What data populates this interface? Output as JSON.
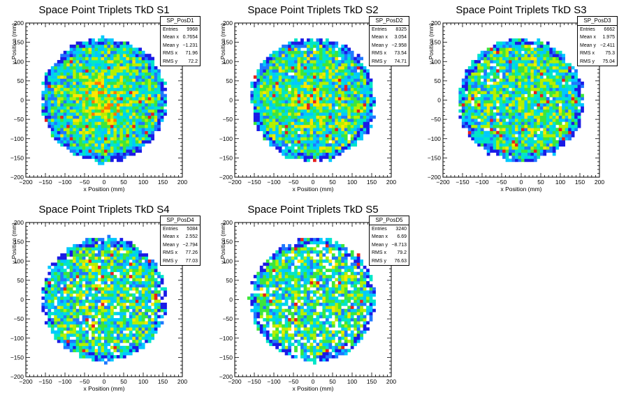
{
  "chart_data": [
    {
      "type": "heatmap",
      "title": "Space Point Triplets TkD S1",
      "xlabel": "x Position (mm)",
      "ylabel": "y Position (mm)",
      "xlim": [
        -200,
        200
      ],
      "ylim": [
        -200,
        200
      ],
      "xticks": [
        "−200",
        "−150",
        "−100",
        "−50",
        "0",
        "50",
        "100",
        "150",
        "200"
      ],
      "yticks": [
        "−200",
        "−150",
        "−100",
        "−50",
        "0",
        "50",
        "100",
        "150",
        "200"
      ],
      "disk_radius_mm": 160,
      "stats": {
        "name": "SP_PosD1",
        "rows": [
          {
            "label": "Entries",
            "value": "9968"
          },
          {
            "label": "Mean x",
            "value": "0.7654"
          },
          {
            "label": "Mean y",
            "value": "−1.231"
          },
          {
            "label": "RMS x",
            "value": "71.96"
          },
          {
            "label": "RMS y",
            "value": "72.2"
          }
        ]
      }
    },
    {
      "type": "heatmap",
      "title": "Space Point Triplets TkD S2",
      "xlabel": "x Position (mm)",
      "ylabel": "y Position (mm)",
      "xlim": [
        -200,
        200
      ],
      "ylim": [
        -200,
        200
      ],
      "xticks": [
        "−200",
        "−150",
        "−100",
        "−50",
        "0",
        "50",
        "100",
        "150",
        "200"
      ],
      "yticks": [
        "−200",
        "−150",
        "−100",
        "−50",
        "0",
        "50",
        "100",
        "150",
        "200"
      ],
      "disk_radius_mm": 160,
      "stats": {
        "name": "SP_PosD2",
        "rows": [
          {
            "label": "Entries",
            "value": "8325"
          },
          {
            "label": "Mean x",
            "value": "3.054"
          },
          {
            "label": "Mean y",
            "value": "−2.958"
          },
          {
            "label": "RMS x",
            "value": "73.54"
          },
          {
            "label": "RMS y",
            "value": "74.71"
          }
        ]
      }
    },
    {
      "type": "heatmap",
      "title": "Space Point Triplets TkD S3",
      "xlabel": "x Position (mm)",
      "ylabel": "y Position (mm)",
      "xlim": [
        -200,
        200
      ],
      "ylim": [
        -200,
        200
      ],
      "xticks": [
        "−200",
        "−150",
        "−100",
        "−50",
        "0",
        "50",
        "100",
        "150",
        "200"
      ],
      "yticks": [
        "−200",
        "−150",
        "−100",
        "−50",
        "0",
        "50",
        "100",
        "150",
        "200"
      ],
      "disk_radius_mm": 160,
      "stats": {
        "name": "SP_PosD3",
        "rows": [
          {
            "label": "Entries",
            "value": "6662"
          },
          {
            "label": "Mean x",
            "value": "1.975"
          },
          {
            "label": "Mean y",
            "value": "−2.411"
          },
          {
            "label": "RMS x",
            "value": "75.3"
          },
          {
            "label": "RMS y",
            "value": "75.04"
          }
        ]
      }
    },
    {
      "type": "heatmap",
      "title": "Space Point Triplets TkD S4",
      "xlabel": "x Position (mm)",
      "ylabel": "y Position (mm)",
      "xlim": [
        -200,
        200
      ],
      "ylim": [
        -200,
        200
      ],
      "xticks": [
        "−200",
        "−150",
        "−100",
        "−50",
        "0",
        "50",
        "100",
        "150",
        "200"
      ],
      "yticks": [
        "−200",
        "−150",
        "−100",
        "−50",
        "0",
        "50",
        "100",
        "150",
        "200"
      ],
      "disk_radius_mm": 160,
      "stats": {
        "name": "SP_PosD4",
        "rows": [
          {
            "label": "Entries",
            "value": "5084"
          },
          {
            "label": "Mean x",
            "value": "2.552"
          },
          {
            "label": "Mean y",
            "value": "−2.794"
          },
          {
            "label": "RMS x",
            "value": "77.26"
          },
          {
            "label": "RMS y",
            "value": "77.03"
          }
        ]
      }
    },
    {
      "type": "heatmap",
      "title": "Space Point Triplets TkD S5",
      "xlabel": "x Position (mm)",
      "ylabel": "y Position (mm)",
      "xlim": [
        -200,
        200
      ],
      "ylim": [
        -200,
        200
      ],
      "xticks": [
        "−200",
        "−150",
        "−100",
        "−50",
        "0",
        "50",
        "100",
        "150",
        "200"
      ],
      "yticks": [
        "−200",
        "−150",
        "−100",
        "−50",
        "0",
        "50",
        "100",
        "150",
        "200"
      ],
      "disk_radius_mm": 160,
      "stats": {
        "name": "SP_PosD5",
        "rows": [
          {
            "label": "Entries",
            "value": "3240"
          },
          {
            "label": "Mean x",
            "value": "6.69"
          },
          {
            "label": "Mean y",
            "value": "−8.713"
          },
          {
            "label": "RMS x",
            "value": "79.2"
          },
          {
            "label": "RMS y",
            "value": "76.63"
          }
        ]
      }
    }
  ],
  "palette": [
    "#1a1ae6",
    "#1e78ff",
    "#00c8ff",
    "#00e6c8",
    "#3ce63c",
    "#b4f000",
    "#ffe600",
    "#ff7800",
    "#e61e1e"
  ]
}
